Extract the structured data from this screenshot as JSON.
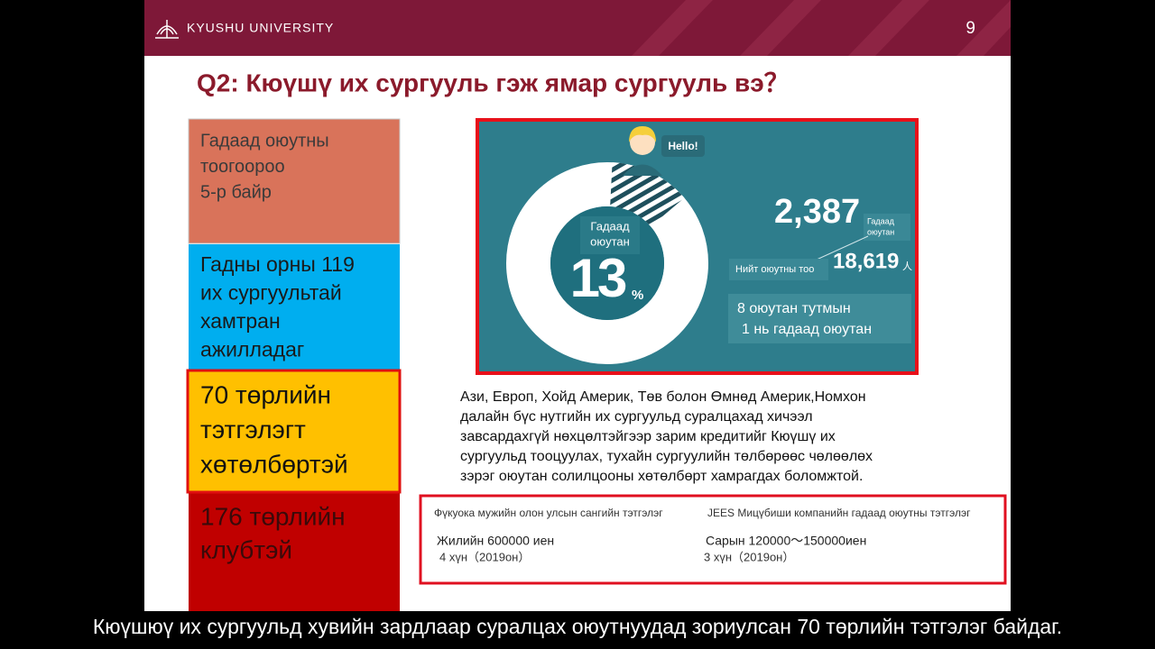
{
  "header": {
    "logo": "KYUSHU UNIVERSITY",
    "page": "9"
  },
  "title": "Q2: Кюүшү их сургууль гэж ямар сургууль вэ？",
  "features": [
    {
      "lines": [
        "Гадаад оюутны",
        "тоогоороо",
        "5-р байр"
      ]
    },
    {
      "lines": [
        "Гадны орны 119",
        "их сургуультай",
        "хамтран",
        "ажилладаг"
      ]
    },
    {
      "lines": [
        "70 төрлийн",
        "тэтгэлэгт",
        "хөтөлбөртэй"
      ]
    },
    {
      "lines": [
        "176 төрлийн",
        "клубтэй"
      ]
    }
  ],
  "infographic": {
    "hello": "Hello!",
    "donut_label": [
      "Гадаад",
      "оюутан"
    ],
    "percent": 13,
    "percent_unit": "%",
    "foreign_count": "2,387",
    "foreign_label": [
      "Гадаад",
      "оюутан"
    ],
    "total_label": "Нийт оюутны тоо",
    "total_count": "18,619",
    "total_unit": "人",
    "ratio": [
      "8 оюутан тутмын",
      "1 нь гадаад оюутан"
    ]
  },
  "paragraph": [
    "Ази, Европ, Хойд Америк, Төв болон Өмнөд Америк,Номхон",
    "далайн бүс нутгийн их сургуульд суралцахад хичээл",
    "завсардахгүй нөхцөлтэйгээр зарим кредитийг Кюүшү их",
    "сургуульд тооцуулах, тухайн сургуулийн төлбөрөөс чөлөөлөх",
    "зэрэг оюутан солилцооны хөтөлбөрт хамрагдах боломжтой."
  ],
  "scholarships": [
    {
      "name": "Фүкуока мужийн олон улсын сангийн тэтгэлэг",
      "amount": "Жилийн 600000 иен",
      "recipients": "4 хүн（2019он）"
    },
    {
      "name": "JEES Мицүбиши компанийн гадаад оюутны тэтгэлэг",
      "amount": "Сарын 120000～150000иен",
      "recipients": "3 хүн（2019он）"
    }
  ],
  "subtitle": "Кюүшюү их сургуульд хувийн зардлаар суралцах оюутнуудад зориулсан 70 төрлийн тэтгэлэг байдаг."
}
